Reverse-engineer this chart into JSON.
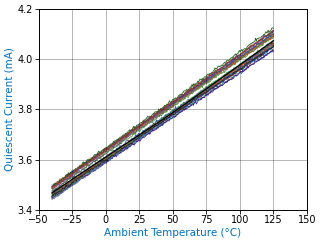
{
  "xlabel": "Ambient Temperature (°C)",
  "ylabel": "Quiescent Current (mA)",
  "xlim": [
    -50,
    150
  ],
  "ylim": [
    3.4,
    4.2
  ],
  "xticks": [
    -50,
    -25,
    0,
    25,
    50,
    75,
    100,
    125,
    150
  ],
  "yticks": [
    3.4,
    3.6,
    3.8,
    4.0,
    4.2
  ],
  "x_start": -40,
  "x_end": 125,
  "y_start_mean": 3.468,
  "y_end_mean": 4.075,
  "num_lines": 25,
  "spread": 0.028,
  "line_colors": [
    "#c00000",
    "#ff2200",
    "#ff6600",
    "#cc7700",
    "#888800",
    "#005500",
    "#00aa44",
    "#007777",
    "#0055cc",
    "#1133cc",
    "#7030a0",
    "#440088",
    "#773333",
    "#994422",
    "#224499",
    "#448833",
    "#bb5511",
    "#2244aa",
    "#5577aa",
    "#669955",
    "#444444",
    "#222222",
    "#555555",
    "#886644",
    "#993322",
    "#336677",
    "#aaaaaa",
    "#bbbbbb",
    "#cccccc",
    "#dddddd"
  ],
  "background_color": "#ffffff",
  "xlabel_color": "#0070c0",
  "ylabel_color": "#0070c0",
  "tick_color": "#000000",
  "grid_color": "#000000",
  "linewidth": 0.6
}
